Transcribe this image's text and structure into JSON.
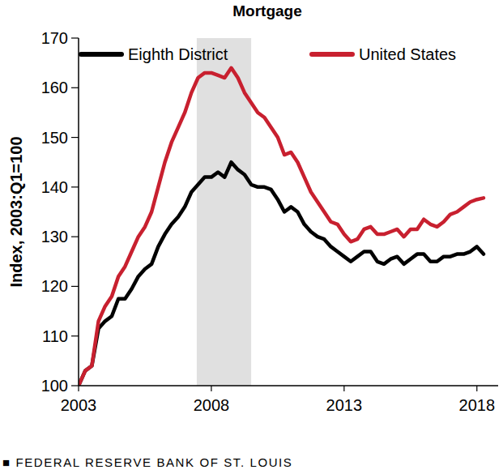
{
  "chart_data": {
    "type": "line",
    "title": "Mortgage",
    "y_label": "Index, 2003:Q1=100",
    "source": "■ FEDERAL RESERVE BANK OF ST. LOUIS",
    "x": [
      2003,
      2003.25,
      2003.5,
      2003.75,
      2004,
      2004.25,
      2004.5,
      2004.75,
      2005,
      2005.25,
      2005.5,
      2005.75,
      2006,
      2006.25,
      2006.5,
      2006.75,
      2007,
      2007.25,
      2007.5,
      2007.75,
      2008,
      2008.25,
      2008.5,
      2008.75,
      2009,
      2009.25,
      2009.5,
      2009.75,
      2010,
      2010.25,
      2010.5,
      2010.75,
      2011,
      2011.25,
      2011.5,
      2011.75,
      2012,
      2012.25,
      2012.5,
      2012.75,
      2013,
      2013.25,
      2013.5,
      2013.75,
      2014,
      2014.25,
      2014.5,
      2014.75,
      2015,
      2015.25,
      2015.5,
      2015.75,
      2016,
      2016.25,
      2016.5,
      2016.75,
      2017,
      2017.25,
      2017.5,
      2017.75,
      2018,
      2018.25
    ],
    "series": [
      {
        "name": "Eighth District",
        "color": "#000000",
        "values": [
          100,
          103,
          104,
          111.5,
          113,
          114,
          117.5,
          117.5,
          119.5,
          122,
          123.5,
          124.5,
          128,
          130.5,
          132.5,
          134,
          136,
          139,
          140.5,
          142,
          142,
          143,
          142,
          145,
          143.5,
          142.5,
          140.5,
          140,
          140,
          139.5,
          137.5,
          135,
          136,
          135,
          132.5,
          131,
          130,
          129.5,
          128,
          127,
          126,
          125,
          126,
          127,
          127,
          125,
          124.5,
          125.5,
          126,
          124.5,
          125.5,
          126.5,
          126.5,
          125,
          125,
          126,
          126,
          126.5,
          126.5,
          127,
          128,
          126.5
        ]
      },
      {
        "name": "United States",
        "color": "#c8202f",
        "values": [
          100,
          103,
          104,
          113,
          116,
          118,
          122,
          124,
          127,
          130,
          132,
          135,
          140,
          145,
          149,
          152,
          155,
          159,
          162,
          163,
          163,
          162.5,
          162,
          164,
          162,
          159,
          157,
          155,
          154,
          152,
          150,
          146.5,
          147,
          145,
          142,
          139,
          137,
          135,
          133,
          132.5,
          130.5,
          129,
          129.5,
          131.5,
          132,
          130.5,
          130.5,
          131,
          131.5,
          130,
          131.5,
          131.5,
          133.5,
          132.5,
          132,
          133,
          134.5,
          135,
          136,
          137,
          137.5,
          137.8
        ]
      }
    ],
    "shaded_periods": [
      {
        "start": 2007.45,
        "end": 2009.5,
        "color": "#e0e0e0"
      }
    ],
    "xlim": [
      2003,
      2018.8
    ],
    "xticks": [
      2003,
      2008,
      2013,
      2018
    ],
    "ylim": [
      100,
      170
    ],
    "yticks": [
      100,
      110,
      120,
      130,
      140,
      150,
      160,
      170
    ],
    "grid": false,
    "legend": "top"
  }
}
